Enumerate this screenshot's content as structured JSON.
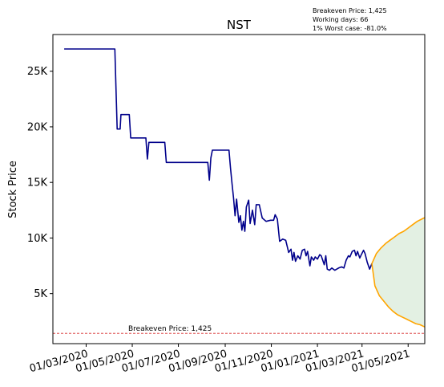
{
  "chart_data": {
    "type": "line",
    "title": "NST",
    "ylabel": "Stock Price",
    "xlabel": "",
    "grid": false,
    "info_lines": [
      "Breakeven Price: 1,425",
      "Working days: 66",
      "1% Worst case: -81.0%"
    ],
    "breakeven": {
      "value": 1425,
      "label": "Breakeven Price: 1,425",
      "color": "#d62728"
    },
    "x_ticks": [
      {
        "date": "2020-03-01",
        "label": "01/03/2020"
      },
      {
        "date": "2020-05-01",
        "label": "01/05/2020"
      },
      {
        "date": "2020-07-01",
        "label": "01/07/2020"
      },
      {
        "date": "2020-09-01",
        "label": "01/09/2020"
      },
      {
        "date": "2020-11-01",
        "label": "01/11/2020"
      },
      {
        "date": "2021-01-01",
        "label": "01/01/2021"
      },
      {
        "date": "2021-03-01",
        "label": "01/03/2021"
      },
      {
        "date": "2021-05-01",
        "label": "01/05/2021"
      }
    ],
    "y_ticks": [
      {
        "value": 5000,
        "label": "5K"
      },
      {
        "value": 10000,
        "label": "10K"
      },
      {
        "value": 15000,
        "label": "15K"
      },
      {
        "value": 20000,
        "label": "20K"
      },
      {
        "value": 25000,
        "label": "25K"
      }
    ],
    "xlim": [
      "2020-01-17",
      "2021-05-23"
    ],
    "ylim": [
      500,
      28300
    ],
    "series": [
      {
        "color": "#00008b",
        "points": [
          [
            "2020-02-01",
            27000
          ],
          [
            "2020-04-08",
            27000
          ],
          [
            "2020-04-11",
            19800
          ],
          [
            "2020-04-15",
            19800
          ],
          [
            "2020-04-16",
            21100
          ],
          [
            "2020-04-27",
            21100
          ],
          [
            "2020-04-29",
            19000
          ],
          [
            "2020-05-19",
            19000
          ],
          [
            "2020-05-21",
            17100
          ],
          [
            "2020-05-23",
            18600
          ],
          [
            "2020-06-13",
            18600
          ],
          [
            "2020-06-15",
            16800
          ],
          [
            "2020-06-30",
            16800
          ],
          [
            "2020-07-20",
            16800
          ],
          [
            "2020-08-09",
            16800
          ],
          [
            "2020-08-11",
            15200
          ],
          [
            "2020-08-13",
            17200
          ],
          [
            "2020-08-15",
            17900
          ],
          [
            "2020-08-30",
            17900
          ],
          [
            "2020-09-06",
            17900
          ],
          [
            "2020-09-08",
            16300
          ],
          [
            "2020-09-10",
            14900
          ],
          [
            "2020-09-12",
            13600
          ],
          [
            "2020-09-14",
            12000
          ],
          [
            "2020-09-16",
            13500
          ],
          [
            "2020-09-19",
            11400
          ],
          [
            "2020-09-21",
            12000
          ],
          [
            "2020-09-23",
            10700
          ],
          [
            "2020-09-25",
            11500
          ],
          [
            "2020-09-27",
            10600
          ],
          [
            "2020-09-29",
            12800
          ],
          [
            "2020-10-02",
            13400
          ],
          [
            "2020-10-04",
            11300
          ],
          [
            "2020-10-07",
            12500
          ],
          [
            "2020-10-10",
            11200
          ],
          [
            "2020-10-12",
            13000
          ],
          [
            "2020-10-16",
            13000
          ],
          [
            "2020-10-20",
            11800
          ],
          [
            "2020-10-25",
            11500
          ],
          [
            "2020-10-31",
            11600
          ],
          [
            "2020-11-04",
            11600
          ],
          [
            "2020-11-06",
            12100
          ],
          [
            "2020-11-09",
            11700
          ],
          [
            "2020-11-12",
            9700
          ],
          [
            "2020-11-16",
            9900
          ],
          [
            "2020-11-20",
            9800
          ],
          [
            "2020-11-24",
            8700
          ],
          [
            "2020-11-27",
            9000
          ],
          [
            "2020-11-29",
            8000
          ],
          [
            "2020-12-01",
            8700
          ],
          [
            "2020-12-03",
            7900
          ],
          [
            "2020-12-06",
            8400
          ],
          [
            "2020-12-09",
            8100
          ],
          [
            "2020-12-12",
            8900
          ],
          [
            "2020-12-15",
            9000
          ],
          [
            "2020-12-17",
            8400
          ],
          [
            "2020-12-19",
            8800
          ],
          [
            "2020-12-22",
            7500
          ],
          [
            "2020-12-24",
            8300
          ],
          [
            "2020-12-27",
            8000
          ],
          [
            "2020-12-29",
            8300
          ],
          [
            "2021-01-01",
            8100
          ],
          [
            "2021-01-04",
            8500
          ],
          [
            "2021-01-06",
            8400
          ],
          [
            "2021-01-10",
            7600
          ],
          [
            "2021-01-12",
            8400
          ],
          [
            "2021-01-14",
            7200
          ],
          [
            "2021-01-17",
            7100
          ],
          [
            "2021-01-20",
            7300
          ],
          [
            "2021-01-24",
            7100
          ],
          [
            "2021-01-29",
            7300
          ],
          [
            "2021-02-02",
            7400
          ],
          [
            "2021-02-05",
            7300
          ],
          [
            "2021-02-08",
            8000
          ],
          [
            "2021-02-11",
            8400
          ],
          [
            "2021-02-13",
            8300
          ],
          [
            "2021-02-16",
            8800
          ],
          [
            "2021-02-19",
            8900
          ],
          [
            "2021-02-21",
            8400
          ],
          [
            "2021-02-23",
            8800
          ],
          [
            "2021-02-26",
            8200
          ],
          [
            "2021-02-28",
            8500
          ],
          [
            "2021-03-03",
            8900
          ],
          [
            "2021-03-05",
            8600
          ],
          [
            "2021-03-08",
            7800
          ],
          [
            "2021-03-11",
            7200
          ],
          [
            "2021-03-14",
            7700
          ]
        ]
      },
      {
        "color": "#ffa500",
        "points": [
          [
            "2021-03-14",
            7700
          ],
          [
            "2021-03-20",
            8600
          ],
          [
            "2021-03-26",
            9100
          ],
          [
            "2021-04-01",
            9500
          ],
          [
            "2021-04-07",
            9800
          ],
          [
            "2021-04-13",
            10100
          ],
          [
            "2021-04-19",
            10400
          ],
          [
            "2021-04-25",
            10600
          ],
          [
            "2021-05-01",
            10900
          ],
          [
            "2021-05-07",
            11200
          ],
          [
            "2021-05-13",
            11500
          ],
          [
            "2021-05-19",
            11700
          ],
          [
            "2021-05-25",
            11900
          ],
          [
            "2021-05-31",
            12100
          ],
          [
            "2021-06-06",
            12300
          ],
          [
            "2021-06-12",
            12500
          ],
          [
            "2021-06-18",
            12700
          ]
        ]
      },
      {
        "color": "#ffa500",
        "points": [
          [
            "2021-03-14",
            7700
          ],
          [
            "2021-03-18",
            5700
          ],
          [
            "2021-03-24",
            4800
          ],
          [
            "2021-03-30",
            4300
          ],
          [
            "2021-04-05",
            3800
          ],
          [
            "2021-04-11",
            3400
          ],
          [
            "2021-04-17",
            3100
          ],
          [
            "2021-04-23",
            2900
          ],
          [
            "2021-04-29",
            2700
          ],
          [
            "2021-05-05",
            2500
          ],
          [
            "2021-05-11",
            2300
          ],
          [
            "2021-05-17",
            2200
          ],
          [
            "2021-05-23",
            2000
          ],
          [
            "2021-05-29",
            1900
          ],
          [
            "2021-06-04",
            1700
          ],
          [
            "2021-06-10",
            1600
          ],
          [
            "2021-06-14",
            1450
          ],
          [
            "2021-06-18",
            1850
          ]
        ]
      }
    ],
    "band_color": "#c8e2c8"
  }
}
